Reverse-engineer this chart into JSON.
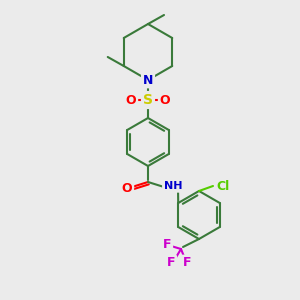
{
  "bg_color": "#ebebeb",
  "atom_colors": {
    "C": "#3a7a3a",
    "N": "#0000cc",
    "O": "#ff0000",
    "S": "#cccc00",
    "Cl": "#55cc00",
    "F": "#cc00cc",
    "H": "#888888"
  },
  "bond_color": "#3a7a3a",
  "figsize": [
    3.0,
    3.0
  ],
  "dpi": 100
}
